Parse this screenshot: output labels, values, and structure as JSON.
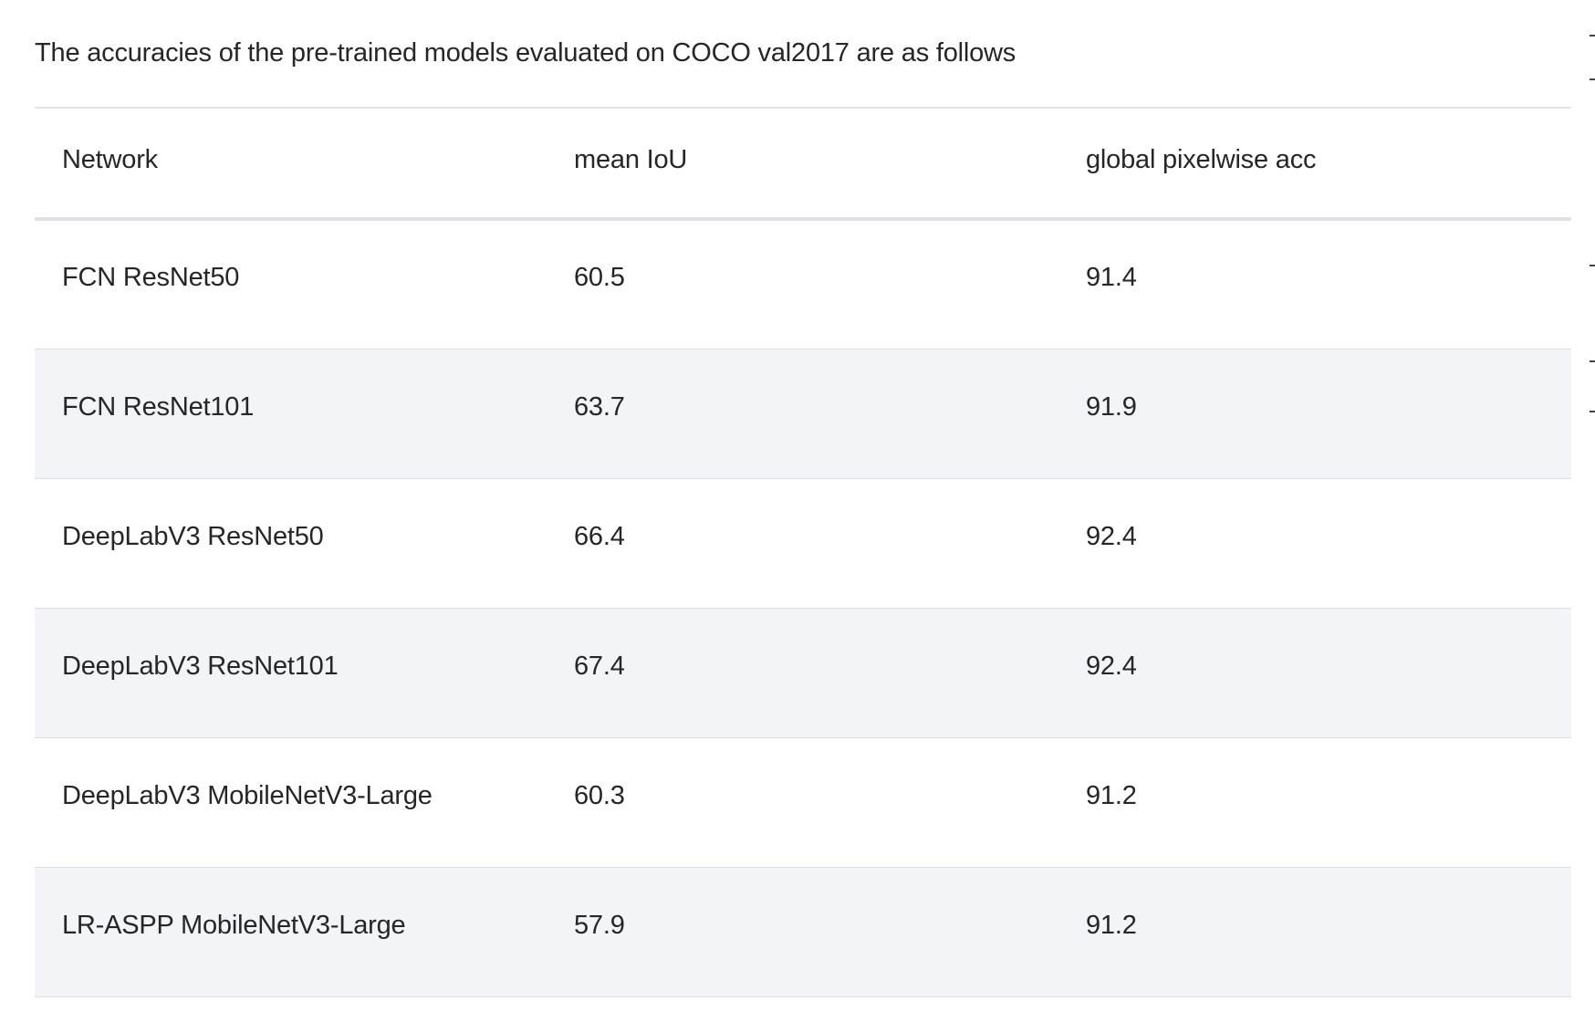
{
  "intro_text": "The accuracies of the pre-trained models evaluated on COCO val2017 are as follows",
  "table": {
    "headers": [
      "Network",
      "mean IoU",
      "global pixelwise acc"
    ],
    "rows": [
      [
        "FCN ResNet50",
        "60.5",
        "91.4"
      ],
      [
        "FCN ResNet101",
        "63.7",
        "91.9"
      ],
      [
        "DeepLabV3 ResNet50",
        "66.4",
        "92.4"
      ],
      [
        "DeepLabV3 ResNet101",
        "67.4",
        "92.4"
      ],
      [
        "DeepLabV3 MobileNetV3-Large",
        "60.3",
        "91.2"
      ],
      [
        "LR-ASPP MobileNetV3-Large",
        "57.9",
        "91.2"
      ]
    ]
  },
  "colors": {
    "text": "#262626",
    "stripe": "#f3f4f7",
    "border": "#dcdce2"
  }
}
